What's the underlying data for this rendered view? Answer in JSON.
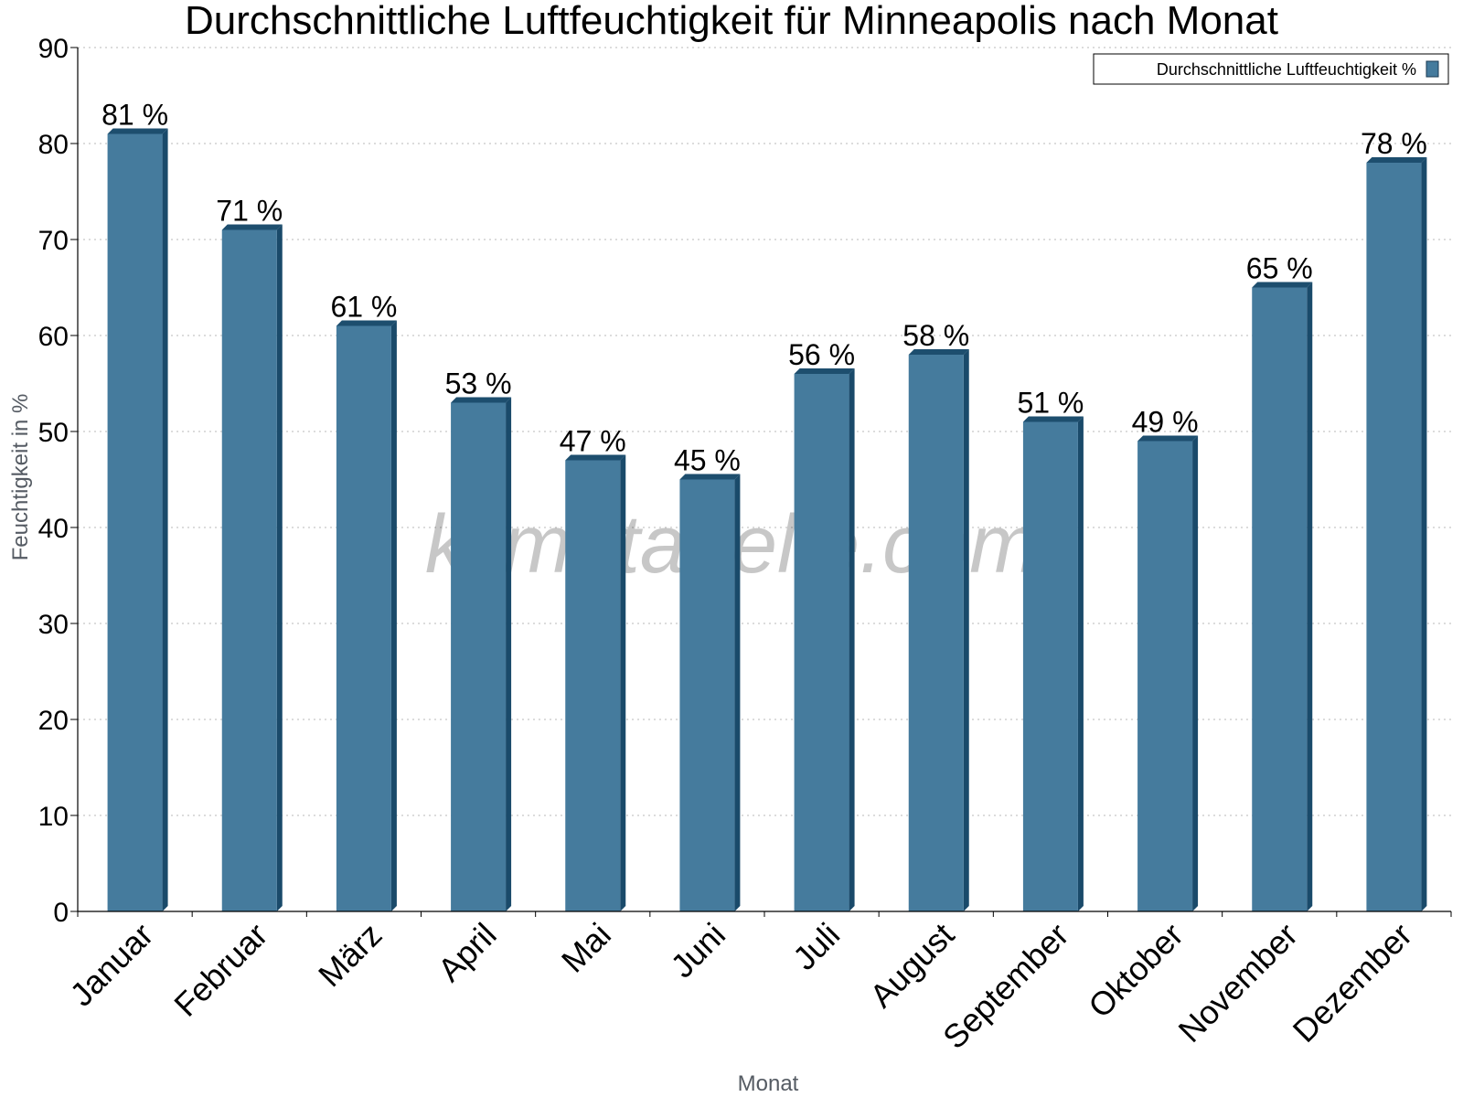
{
  "chart_data": {
    "type": "bar",
    "title": "Durchschnittliche Luftfeuchtigkeit für Minneapolis nach Monat",
    "xlabel": "Monat",
    "ylabel": "Feuchtigkeit in %",
    "ylim": [
      0,
      90
    ],
    "yticks": [
      0,
      10,
      20,
      30,
      40,
      50,
      60,
      70,
      80,
      90
    ],
    "grid": true,
    "legend_position": "top-right",
    "categories": [
      "Januar",
      "Februar",
      "März",
      "April",
      "Mai",
      "Juni",
      "Juli",
      "August",
      "September",
      "Oktober",
      "November",
      "Dezember"
    ],
    "series": [
      {
        "name": "Durchschnittliche Luftfeuchtigkeit %",
        "values": [
          81,
          71,
          61,
          53,
          47,
          45,
          56,
          58,
          51,
          49,
          65,
          78
        ],
        "labels": [
          "81 %",
          "71 %",
          "61 %",
          "53 %",
          "47 %",
          "45 %",
          "56 %",
          "58 %",
          "51 %",
          "49 %",
          "65 %",
          "78 %"
        ]
      }
    ],
    "colors": {
      "bar_front": "#457b9d",
      "bar_top": "#1d4e6e",
      "bar_side": "#1a4a6a",
      "grid": "#c8c8c8",
      "axis": "#000000"
    }
  },
  "watermark": "klimatabelle.com"
}
